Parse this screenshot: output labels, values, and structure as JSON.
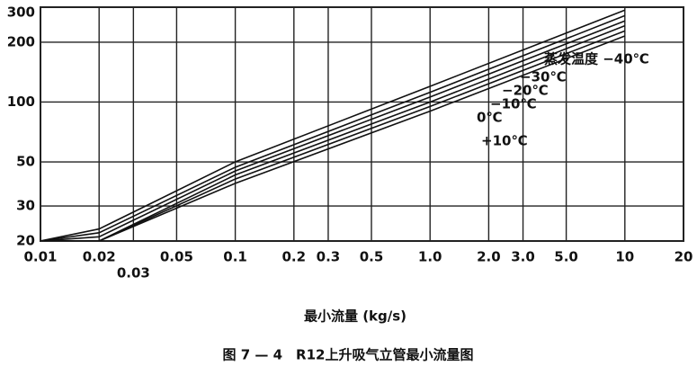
{
  "chart_data": {
    "type": "line",
    "x_label": "最小流量 (kg/s)",
    "caption": "图 7 — 4　R12上升吸气立管最小流量图",
    "log_x": true,
    "log_y": true,
    "grid": true,
    "xlim": [
      0.01,
      20
    ],
    "ylim": [
      20,
      300
    ],
    "xticks": [
      0.01,
      0.02,
      0.03,
      0.05,
      0.1,
      0.2,
      0.3,
      0.5,
      {
        "value": 1,
        "label": "1.0"
      },
      {
        "value": 2,
        "label": "2.0"
      },
      {
        "value": 3,
        "label": "3.0"
      },
      {
        "value": 5,
        "label": "5.0"
      },
      10,
      20
    ],
    "yticks": [
      20,
      30,
      50,
      100,
      200,
      300
    ],
    "x": [
      0.01,
      0.02,
      0.1,
      1,
      10
    ],
    "series": [
      {
        "name": "蒸发温度 −40℃",
        "color": "#111111",
        "values": [
          20,
          23,
          50,
          120,
          290
        ]
      },
      {
        "name": "−30℃",
        "color": "#111111",
        "values": [
          20,
          22,
          47,
          112,
          272
        ]
      },
      {
        "name": "−20℃",
        "color": "#111111",
        "values": [
          20,
          21,
          45,
          106,
          256
        ]
      },
      {
        "name": "−10℃",
        "color": "#111111",
        "values": [
          20,
          20,
          43,
          100,
          242
        ]
      },
      {
        "name": "0℃",
        "color": "#111111",
        "values": [
          20,
          20,
          41,
          95,
          228
        ]
      },
      {
        "name": "+10℃",
        "color": "#111111",
        "values": [
          20,
          20,
          39,
          90,
          215
        ]
      }
    ]
  }
}
